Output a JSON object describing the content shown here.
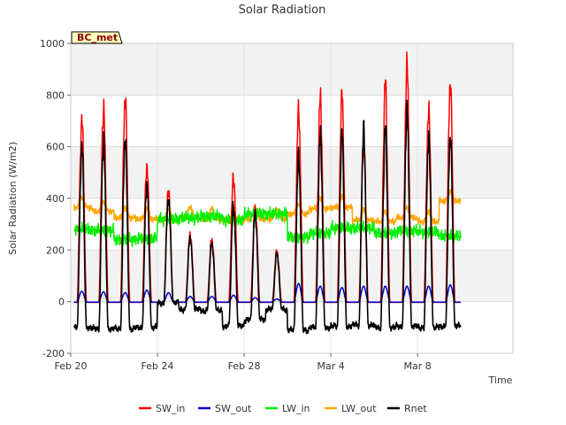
{
  "chart_data": {
    "type": "line",
    "title": "Solar Radiation",
    "xlabel": "Time",
    "ylabel": "Solar Radiation (W/m2)",
    "badge": "BC_met",
    "ylim": [
      -200,
      1000
    ],
    "yticks": [
      -200,
      0,
      200,
      400,
      600,
      800,
      1000
    ],
    "xlim_days": [
      0,
      20.4
    ],
    "xticks": [
      {
        "day": 0,
        "label": "Feb 20"
      },
      {
        "day": 4,
        "label": "Feb 24"
      },
      {
        "day": 8,
        "label": "Feb 28"
      },
      {
        "day": 12,
        "label": "Mar 4"
      },
      {
        "day": 16,
        "label": "Mar 8"
      }
    ],
    "grid": true,
    "legend_position": "bottom",
    "series": [
      {
        "name": "SW_in",
        "color": "#ff0000"
      },
      {
        "name": "SW_out",
        "color": "#0000cc"
      },
      {
        "name": "LW_in",
        "color": "#00ee00"
      },
      {
        "name": "LW_out",
        "color": "#ffa500"
      },
      {
        "name": "Rnet",
        "color": "#000000"
      }
    ],
    "daily": [
      {
        "date": "Feb 20",
        "sw_in_peak": 695,
        "sw_out_peak": 40,
        "lw_in": 280,
        "lw_out": 385,
        "rnet_peak": 590,
        "rnet_night": -100
      },
      {
        "date": "Feb 21",
        "sw_in_peak": 735,
        "sw_out_peak": 38,
        "lw_in": 275,
        "lw_out": 370,
        "rnet_peak": 610,
        "rnet_night": -105
      },
      {
        "date": "Feb 22",
        "sw_in_peak": 775,
        "sw_out_peak": 35,
        "lw_in": 240,
        "lw_out": 345,
        "rnet_peak": 615,
        "rnet_night": -105
      },
      {
        "date": "Feb 23",
        "sw_in_peak": 520,
        "sw_out_peak": 45,
        "lw_in": 245,
        "lw_out": 340,
        "rnet_peak": 450,
        "rnet_night": -100
      },
      {
        "date": "Feb 24",
        "sw_in_peak": 435,
        "sw_out_peak": 35,
        "lw_in": 320,
        "lw_out": 335,
        "rnet_peak": 400,
        "rnet_night": -5
      },
      {
        "date": "Feb 25",
        "sw_in_peak": 265,
        "sw_out_peak": 20,
        "lw_in": 325,
        "lw_out": 345,
        "rnet_peak": 250,
        "rnet_night": -30
      },
      {
        "date": "Feb 26",
        "sw_in_peak": 245,
        "sw_out_peak": 20,
        "lw_in": 330,
        "lw_out": 340,
        "rnet_peak": 230,
        "rnet_night": -35
      },
      {
        "date": "Feb 27",
        "sw_in_peak": 490,
        "sw_out_peak": 25,
        "lw_in": 315,
        "lw_out": 335,
        "rnet_peak": 380,
        "rnet_night": -95
      },
      {
        "date": "Feb 28",
        "sw_in_peak": 370,
        "sw_out_peak": 15,
        "lw_in": 340,
        "lw_out": 340,
        "rnet_peak": 350,
        "rnet_night": -70
      },
      {
        "date": "Mar 1",
        "sw_in_peak": 200,
        "sw_out_peak": 10,
        "lw_in": 340,
        "lw_out": 340,
        "rnet_peak": 190,
        "rnet_night": -30
      },
      {
        "date": "Mar 2",
        "sw_in_peak": 740,
        "sw_out_peak": 70,
        "lw_in": 250,
        "lw_out": 360,
        "rnet_peak": 560,
        "rnet_night": -110
      },
      {
        "date": "Mar 3",
        "sw_in_peak": 785,
        "sw_out_peak": 60,
        "lw_in": 265,
        "lw_out": 380,
        "rnet_peak": 640,
        "rnet_night": -100
      },
      {
        "date": "Mar 4",
        "sw_in_peak": 790,
        "sw_out_peak": 55,
        "lw_in": 285,
        "lw_out": 385,
        "rnet_peak": 640,
        "rnet_night": -95
      },
      {
        "date": "Mar 5",
        "sw_in_peak": 600,
        "sw_out_peak": 60,
        "lw_in": 285,
        "lw_out": 335,
        "rnet_peak": 650,
        "rnet_night": -90
      },
      {
        "date": "Mar 6",
        "sw_in_peak": 830,
        "sw_out_peak": 60,
        "lw_in": 265,
        "lw_out": 330,
        "rnet_peak": 655,
        "rnet_night": -100
      },
      {
        "date": "Mar 7",
        "sw_in_peak": 900,
        "sw_out_peak": 60,
        "lw_in": 275,
        "lw_out": 345,
        "rnet_peak": 720,
        "rnet_night": -95
      },
      {
        "date": "Mar 8",
        "sw_in_peak": 735,
        "sw_out_peak": 60,
        "lw_in": 270,
        "lw_out": 330,
        "rnet_peak": 620,
        "rnet_night": -100
      },
      {
        "date": "Mar 9",
        "sw_in_peak": 845,
        "sw_out_peak": 65,
        "lw_in": 255,
        "lw_out": 410,
        "rnet_peak": 640,
        "rnet_night": -95
      }
    ]
  }
}
